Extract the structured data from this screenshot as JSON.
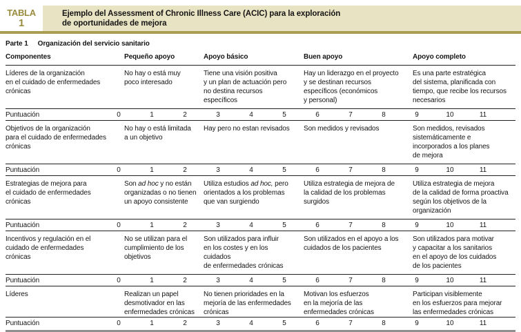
{
  "colors": {
    "gold": "#9a8c3f",
    "beige": "#e8e3c3",
    "gold-rule": "#a99d52",
    "ink": "#141414",
    "rule": "#1f1f1f",
    "bottom-rule": "#8f8f8f"
  },
  "badge": {
    "word": "TABLA",
    "number": "1"
  },
  "title": "Ejemplo del Assessment of Chronic Illness Care (ACIC) para la exploración\nde oportunidades de mejora",
  "part": {
    "label": "Parte 1",
    "name": "Organización del servicio sanitario"
  },
  "columns": [
    "Componentes",
    "Pequeño apoyo",
    "Apoyo básico",
    "Buen apoyo",
    "Apoyo completo"
  ],
  "score": {
    "label": "Puntuación",
    "values": [
      "0",
      "1",
      "2",
      "3",
      "4",
      "5",
      "6",
      "7",
      "8",
      "9",
      "10",
      "11"
    ]
  },
  "rows": [
    {
      "component": "Líderes de la organización\nen el cuidado de enfermedades\ncrónicas",
      "pequeno": "No hay o está muy\npoco interesado",
      "basico": "Tiene una visión positiva\ny un plan de actuación pero\nno destina recursos\nespecíficos",
      "buen": "Hay un liderazgo en el proyecto\ny se destinan recursos\nespecíficos (económicos\ny personal)",
      "completo": "Es una parte estratégica\ndel sistema, planificada con\ntiempo, que recibe los recursos\nnecesarios"
    },
    {
      "component": "Objetivos de la organización\npara el cuidado de enfermedades\ncrónicas",
      "pequeno": "No hay o está limitada\na un objetivo",
      "basico": "Hay pero no estan revisados",
      "buen": "Son medidos y revisados",
      "completo": "Son medidos, revisados\nsistemáticamente e\nincorporados a los planes\nde mejora"
    },
    {
      "component": "Estrategias de mejora para\nel cuidado de enfermedades\ncrónicas",
      "pequeno": "Son *ad hoc* y no están\norganizadas o no tienen\nun apoyo consistente",
      "basico": "Utiliza estudios *ad hoc,* pero\norientados a los problemas\nque van surgiendo",
      "buen": "Utiliza estrategia de mejora de\nla calidad de los problemas\nsurgidos",
      "completo": "Utiliza estrategia de mejora\nde la calidad de forma proactiva\nsegún los objetivos de la\norganización"
    },
    {
      "component": "Incentivos y regulación en el\ncuidado de enfermedades\ncrónicas",
      "pequeno": "No se utilizan para el\ncumplimiento de los\nobjetivos",
      "basico": "Son utilizados para influir\nen los costes y en los cuidados\nde enfermedades crónicas",
      "buen": "Son utilizados en el apoyo a los\ncuidados de los pacientes",
      "completo": "Son utilizados para motivar\ny capacitar a los sanitarios\nen el apoyo de los cuidados\nde los pacientes"
    },
    {
      "component": "Líderes",
      "pequeno": "Realizan un papel\ndesmotivador en las\nenfermedades crónicas",
      "basico": "No tienen prioridades en la\nmejoría de las enfermedades\ncrónicas",
      "buen": "Motivan los esfuerzos\nen la mejoría de las\nenfermedades crónicas",
      "completo": "Participan visiblemente\nen los esfuerzos para mejorar\nlas enfermedades crónicas"
    }
  ]
}
